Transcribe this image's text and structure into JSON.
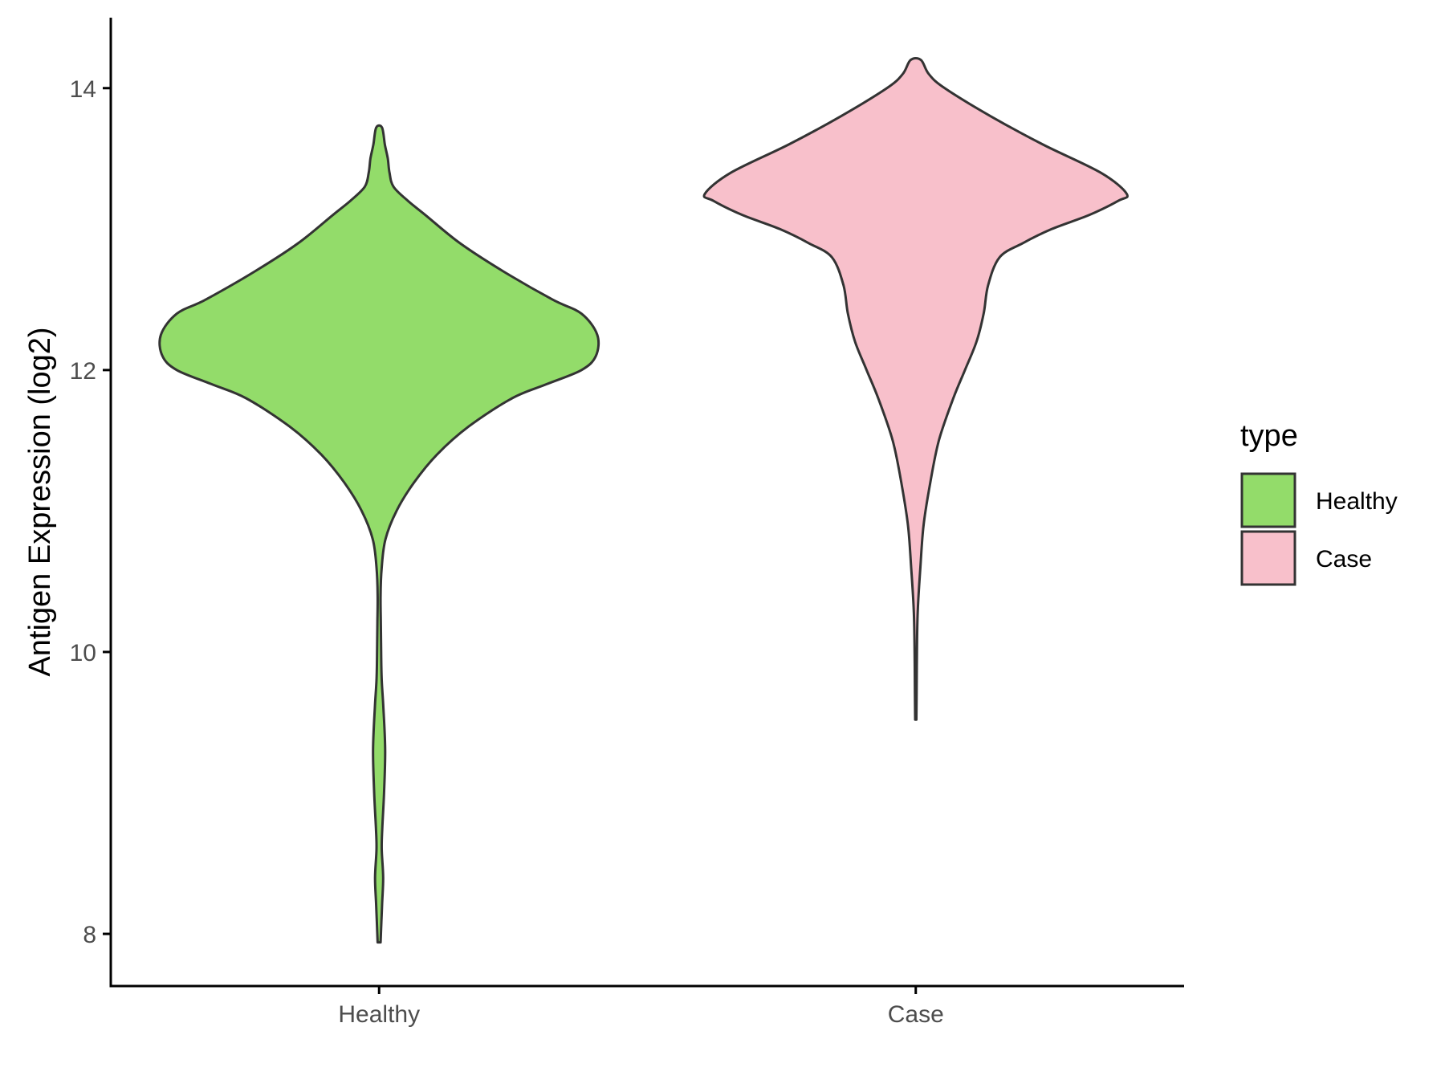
{
  "chart_data": {
    "type": "violin",
    "ylabel": "Antigen Expression (log2)",
    "xlabel": "",
    "categories": [
      "Healthy",
      "Case"
    ],
    "ylim": [
      7.63,
      14.5
    ],
    "yticks": [
      8,
      10,
      12,
      14
    ],
    "ytick_labels": [
      "8",
      "10",
      "12",
      "14"
    ],
    "grid": false,
    "legend": {
      "title": "type",
      "position": "right",
      "entries": [
        {
          "label": "Healthy",
          "color": "#93dc6a"
        },
        {
          "label": "Case",
          "color": "#f8c0cb"
        }
      ]
    },
    "series": [
      {
        "name": "Healthy",
        "color": "#93dc6a",
        "y_min": 7.94,
        "y_max": 13.72,
        "profile": [
          [
            7.94,
            0.005
          ],
          [
            8.2,
            0.01
          ],
          [
            8.4,
            0.014
          ],
          [
            8.6,
            0.009
          ],
          [
            8.75,
            0.011
          ],
          [
            9.0,
            0.017
          ],
          [
            9.3,
            0.021
          ],
          [
            9.6,
            0.015
          ],
          [
            9.8,
            0.009
          ],
          [
            10.0,
            0.007
          ],
          [
            10.2,
            0.006
          ],
          [
            10.4,
            0.005
          ],
          [
            10.6,
            0.009
          ],
          [
            10.8,
            0.022
          ],
          [
            11.0,
            0.06
          ],
          [
            11.2,
            0.12
          ],
          [
            11.4,
            0.2
          ],
          [
            11.6,
            0.31
          ],
          [
            11.8,
            0.46
          ],
          [
            11.9,
            0.58
          ],
          [
            12.0,
            0.7
          ],
          [
            12.1,
            0.75
          ],
          [
            12.25,
            0.755
          ],
          [
            12.4,
            0.7
          ],
          [
            12.5,
            0.6
          ],
          [
            12.7,
            0.43
          ],
          [
            12.9,
            0.28
          ],
          [
            13.1,
            0.16
          ],
          [
            13.2,
            0.1
          ],
          [
            13.3,
            0.05
          ],
          [
            13.4,
            0.036
          ],
          [
            13.5,
            0.03
          ],
          [
            13.6,
            0.02
          ],
          [
            13.72,
            0.01
          ]
        ]
      },
      {
        "name": "Case",
        "color": "#f8c0cb",
        "y_min": 9.52,
        "y_max": 14.2,
        "profile": [
          [
            9.52,
            0.002
          ],
          [
            9.7,
            0.003
          ],
          [
            10.0,
            0.004
          ],
          [
            10.3,
            0.007
          ],
          [
            10.6,
            0.016
          ],
          [
            10.9,
            0.027
          ],
          [
            11.2,
            0.05
          ],
          [
            11.5,
            0.08
          ],
          [
            11.8,
            0.13
          ],
          [
            12.0,
            0.17
          ],
          [
            12.2,
            0.21
          ],
          [
            12.4,
            0.235
          ],
          [
            12.6,
            0.25
          ],
          [
            12.8,
            0.29
          ],
          [
            12.9,
            0.37
          ],
          [
            13.0,
            0.47
          ],
          [
            13.1,
            0.6
          ],
          [
            13.2,
            0.7
          ],
          [
            13.25,
            0.73
          ],
          [
            13.4,
            0.64
          ],
          [
            13.6,
            0.44
          ],
          [
            13.8,
            0.26
          ],
          [
            14.0,
            0.1
          ],
          [
            14.1,
            0.045
          ],
          [
            14.2,
            0.018
          ]
        ]
      }
    ]
  }
}
